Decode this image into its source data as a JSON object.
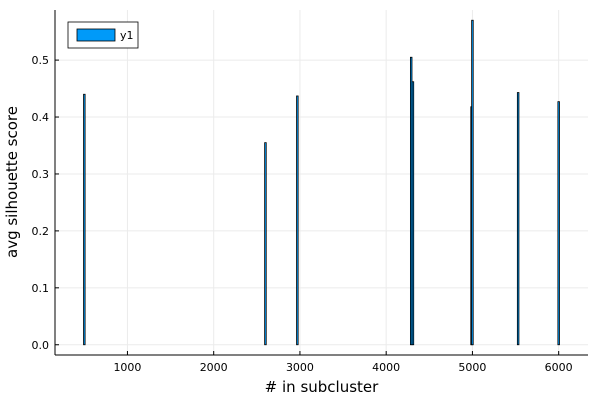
{
  "chart_data": {
    "type": "bar",
    "xlabel": "# in subcluster",
    "ylabel": "avg silhouette score",
    "xlim": [
      160,
      6340
    ],
    "ylim": [
      -0.018,
      0.588
    ],
    "grid": true,
    "legend": {
      "position": "top-left",
      "entries": [
        "y1"
      ]
    },
    "colors": {
      "series": "#009af9",
      "bar_edge": "#000000",
      "grid": "#ebebeb",
      "axis": "#000000"
    },
    "x_ticks": [
      {
        "value": 1000,
        "label": "1000"
      },
      {
        "value": 2000,
        "label": "2000"
      },
      {
        "value": 3000,
        "label": "3000"
      },
      {
        "value": 4000,
        "label": "4000"
      },
      {
        "value": 5000,
        "label": "5000"
      },
      {
        "value": 6000,
        "label": "6000"
      }
    ],
    "y_ticks": [
      {
        "value": 0.0,
        "label": "0.0"
      },
      {
        "value": 0.1,
        "label": "0.1"
      },
      {
        "value": 0.2,
        "label": "0.2"
      },
      {
        "value": 0.3,
        "label": "0.3"
      },
      {
        "value": 0.4,
        "label": "0.4"
      },
      {
        "value": 0.5,
        "label": "0.5"
      }
    ],
    "series": [
      {
        "name": "y1",
        "x": [
          500,
          2600,
          2970,
          4290,
          4310,
          4990,
          5000,
          5530,
          6000
        ],
        "values": [
          0.44,
          0.355,
          0.437,
          0.505,
          0.462,
          0.418,
          0.57,
          0.443,
          0.427
        ]
      }
    ]
  }
}
